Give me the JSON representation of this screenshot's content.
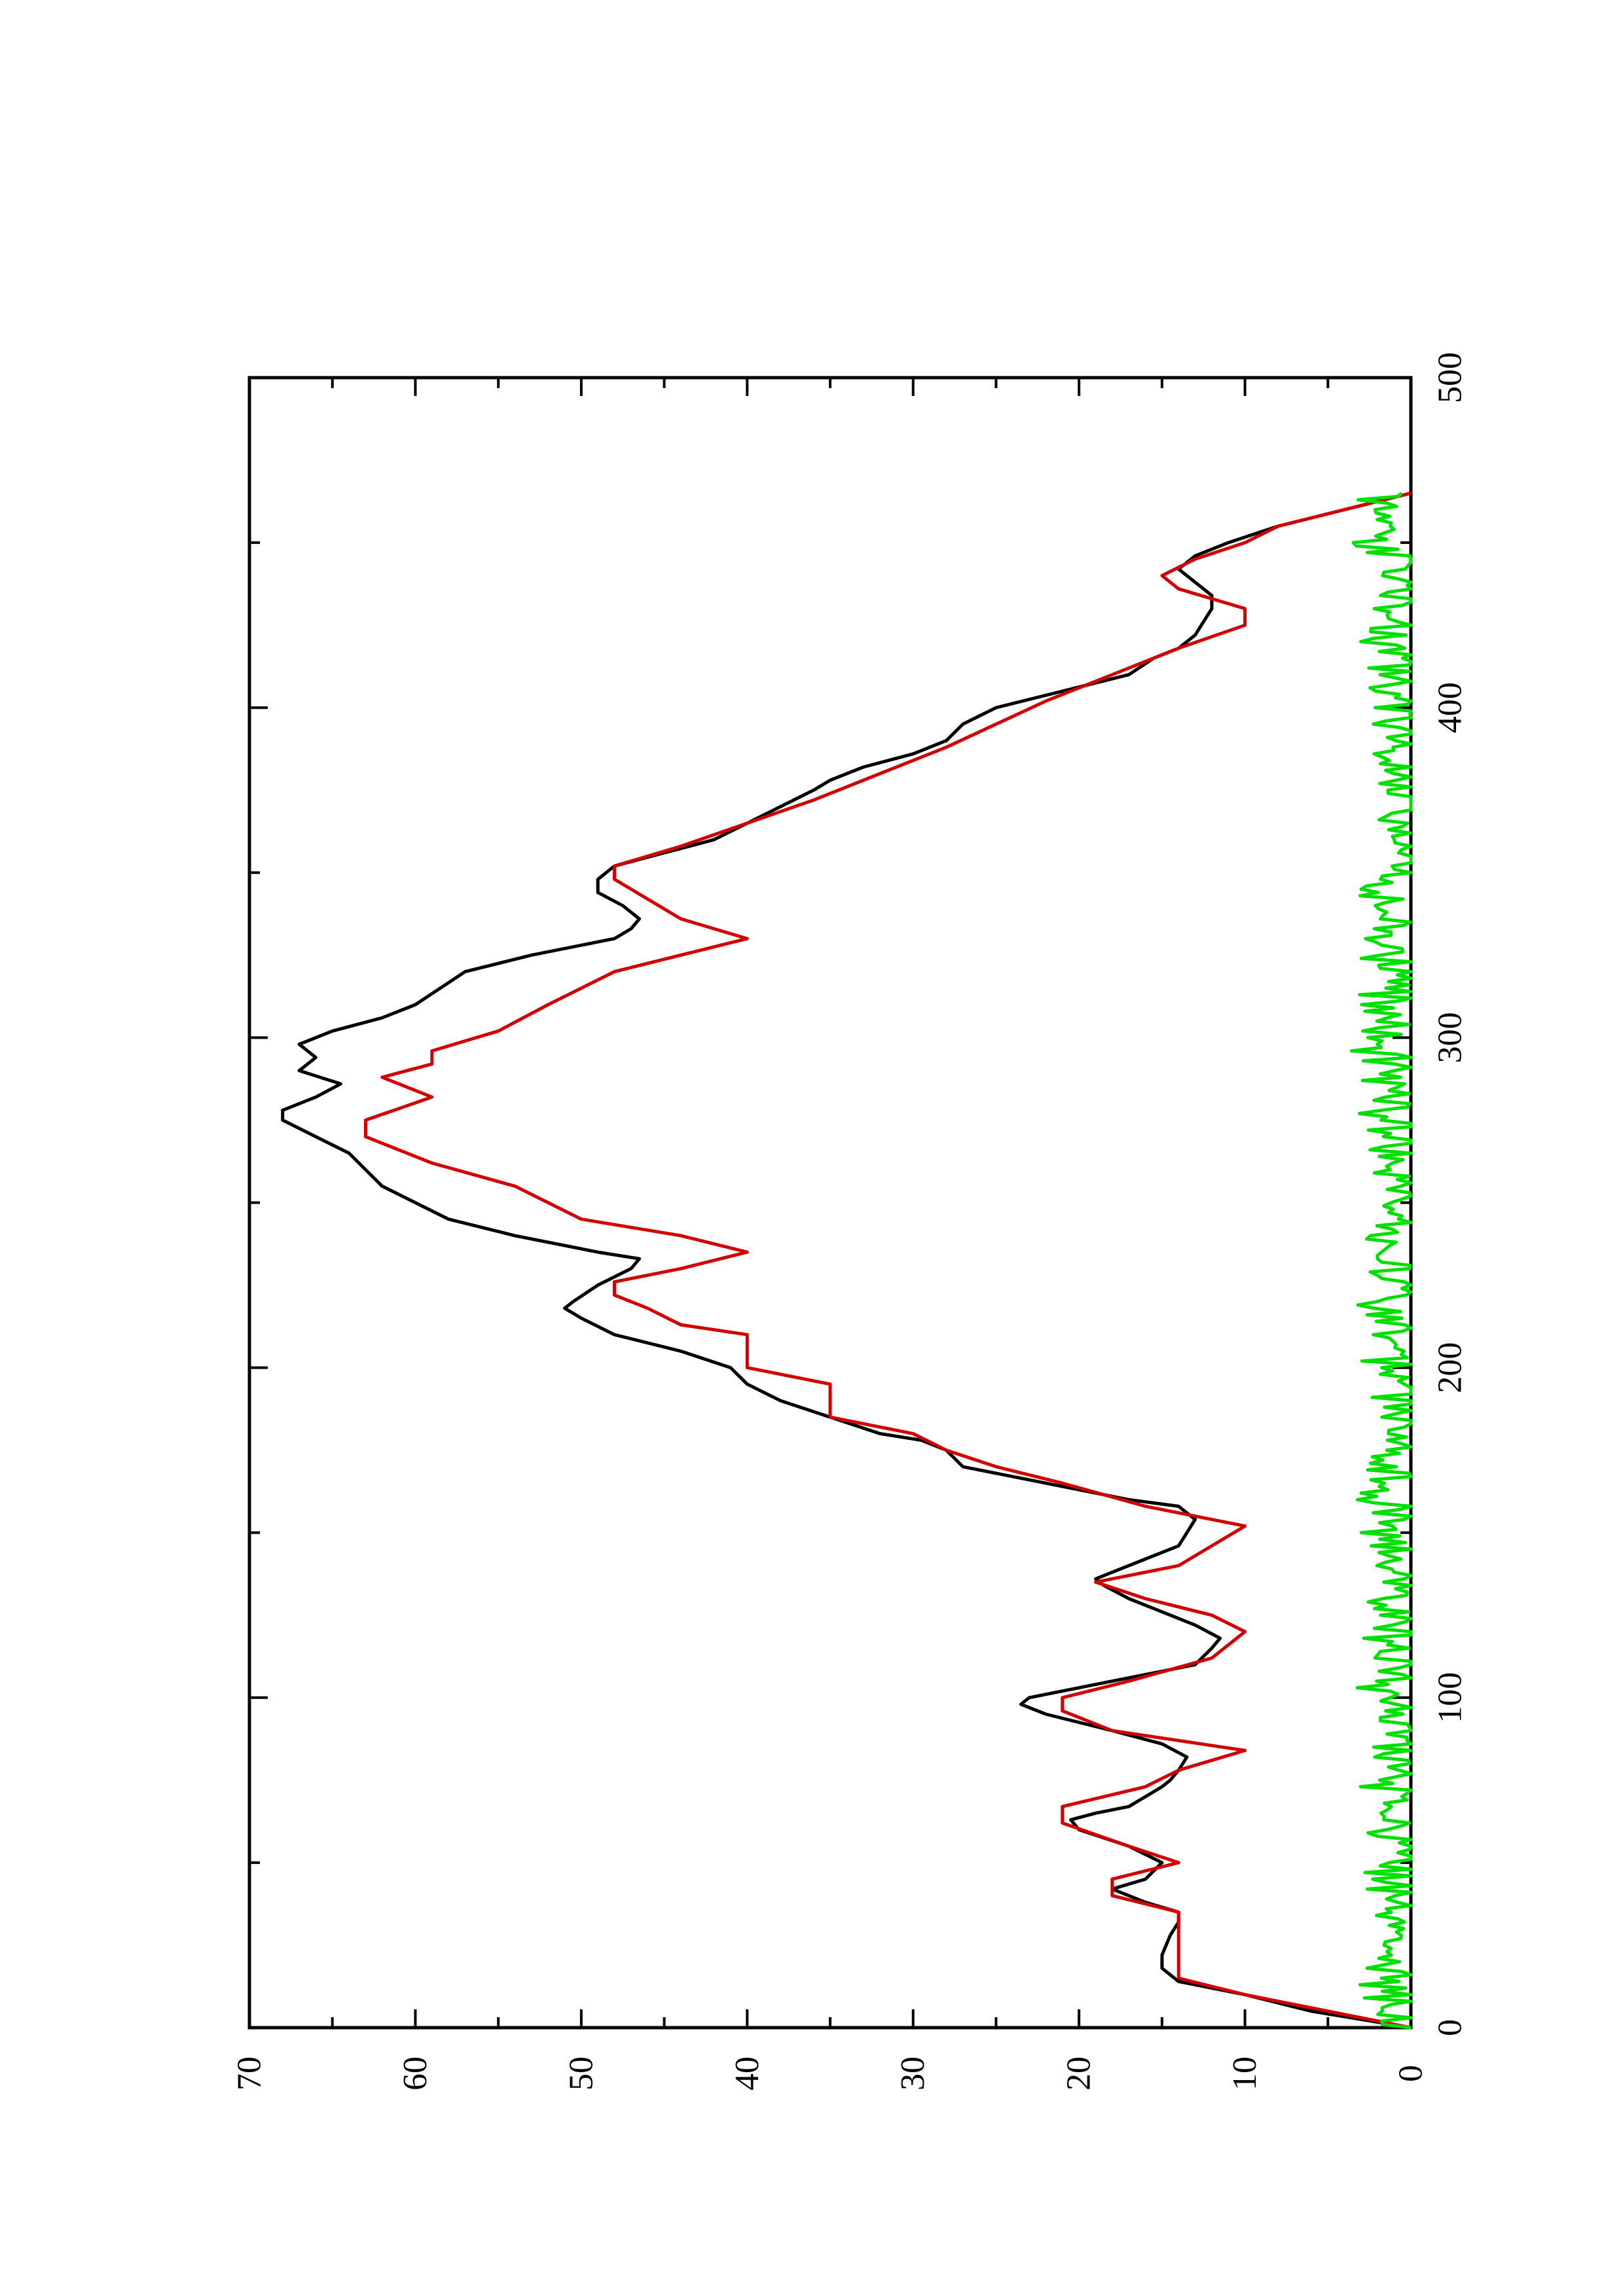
{
  "chart_data": {
    "type": "line",
    "orientation": "rotated-90-ccw",
    "title": "",
    "xlabel": "",
    "ylabel": "",
    "xlim": [
      0,
      500
    ],
    "ylim": [
      0,
      70
    ],
    "x_ticks": [
      0,
      100,
      200,
      300,
      400,
      500
    ],
    "x_tick_labels": [
      "0",
      "100",
      "200",
      "300",
      "400",
      "500"
    ],
    "x_minor_ticks": [
      50,
      150,
      250,
      350,
      450
    ],
    "y_ticks": [
      0,
      10,
      20,
      30,
      40,
      50,
      60,
      70
    ],
    "y_tick_labels": [
      "0",
      "10",
      "20",
      "30",
      "40",
      "50",
      "60",
      "70"
    ],
    "y_minor_ticks": [
      5,
      15,
      25,
      35,
      45,
      55,
      65
    ],
    "grid": false,
    "legend": "none",
    "series": [
      {
        "color": "#000000",
        "x": [
          0,
          5,
          10,
          14,
          18,
          22,
          28,
          32,
          35,
          38,
          42,
          45,
          50,
          55,
          60,
          63,
          65,
          67,
          70,
          73,
          75,
          78,
          82,
          86,
          90,
          95,
          98,
          100,
          102,
          105,
          110,
          115,
          118,
          122,
          126,
          130,
          134,
          136,
          138,
          142,
          146,
          150,
          154,
          158,
          160,
          165,
          170,
          175,
          178,
          180,
          185,
          190,
          195,
          200,
          205,
          210,
          215,
          218,
          220,
          225,
          230,
          233,
          235,
          240,
          245,
          250,
          255,
          260,
          265,
          270,
          275,
          278,
          282,
          286,
          290,
          294,
          298,
          302,
          306,
          310,
          315,
          320,
          325,
          330,
          333,
          336,
          340,
          344,
          348,
          352,
          356,
          360,
          365,
          370,
          375,
          378,
          382,
          386,
          390,
          395,
          400,
          405,
          410,
          415,
          418,
          422,
          426,
          430,
          434,
          438,
          442,
          446,
          450,
          455,
          460,
          465
        ],
        "values": [
          0,
          6,
          10,
          14,
          15,
          15,
          14.5,
          14,
          14,
          16,
          18,
          16,
          15,
          17,
          20,
          20.5,
          19,
          17,
          16,
          15,
          14.5,
          14,
          13.5,
          15,
          18,
          22,
          23.5,
          23,
          21,
          18,
          13,
          12,
          11.5,
          13,
          15,
          17,
          18.5,
          19,
          18,
          16,
          14,
          13.5,
          13,
          14,
          17,
          22,
          27,
          28,
          29.5,
          32,
          35,
          38,
          40,
          41,
          44,
          48,
          50,
          51,
          50.5,
          49,
          47,
          46.5,
          49,
          54,
          58,
          60,
          62,
          63,
          64,
          66,
          68,
          68,
          66,
          64.5,
          67,
          66,
          67,
          65,
          62,
          60,
          58.5,
          57,
          53,
          48,
          47,
          46.5,
          47.5,
          49,
          49,
          48,
          45,
          42,
          40,
          38,
          36,
          35,
          33,
          30,
          28,
          27,
          25,
          21,
          17,
          15.5,
          14,
          13,
          12.5,
          12,
          12,
          13,
          14,
          13,
          11,
          8,
          4,
          0
        ]
      },
      {
        "color": "#d40000",
        "x": [
          0,
          10,
          15,
          35,
          40,
          45,
          50,
          55,
          62,
          67,
          73,
          78,
          84,
          90,
          96,
          100,
          105,
          112,
          120,
          125,
          130,
          135,
          140,
          146,
          152,
          158,
          165,
          170,
          175,
          180,
          185,
          195,
          200,
          210,
          213,
          218,
          222,
          226,
          230,
          235,
          240,
          245,
          250,
          255,
          262,
          270,
          275,
          282,
          288,
          292,
          296,
          302,
          310,
          320,
          325,
          330,
          336,
          342,
          348,
          352,
          358,
          365,
          372,
          380,
          388,
          395,
          402,
          410,
          418,
          425,
          430,
          436,
          440,
          445,
          450,
          455,
          460,
          465
        ],
        "values": [
          0,
          10,
          14,
          14,
          18,
          18,
          14,
          17,
          21,
          21,
          16,
          14,
          10,
          18,
          21,
          21,
          17,
          12,
          10,
          12,
          16,
          19,
          14,
          12,
          10,
          16,
          21,
          25,
          28,
          30,
          35,
          35,
          40,
          40,
          44,
          46,
          48,
          48,
          44,
          40,
          44,
          50,
          52,
          54,
          59,
          63,
          63,
          59,
          62,
          59,
          59,
          55,
          52,
          48,
          44,
          40,
          44,
          46,
          48,
          48,
          44,
          40,
          36,
          32,
          28,
          25,
          22,
          18,
          14,
          10,
          10,
          14,
          15,
          13,
          10,
          8,
          4,
          0
        ]
      },
      {
        "color": "#00e000",
        "description": "noise trace",
        "x_start": 0,
        "x_end": 465,
        "points": 466,
        "base_level": 1.0,
        "amplitude": 1.8
      }
    ]
  }
}
